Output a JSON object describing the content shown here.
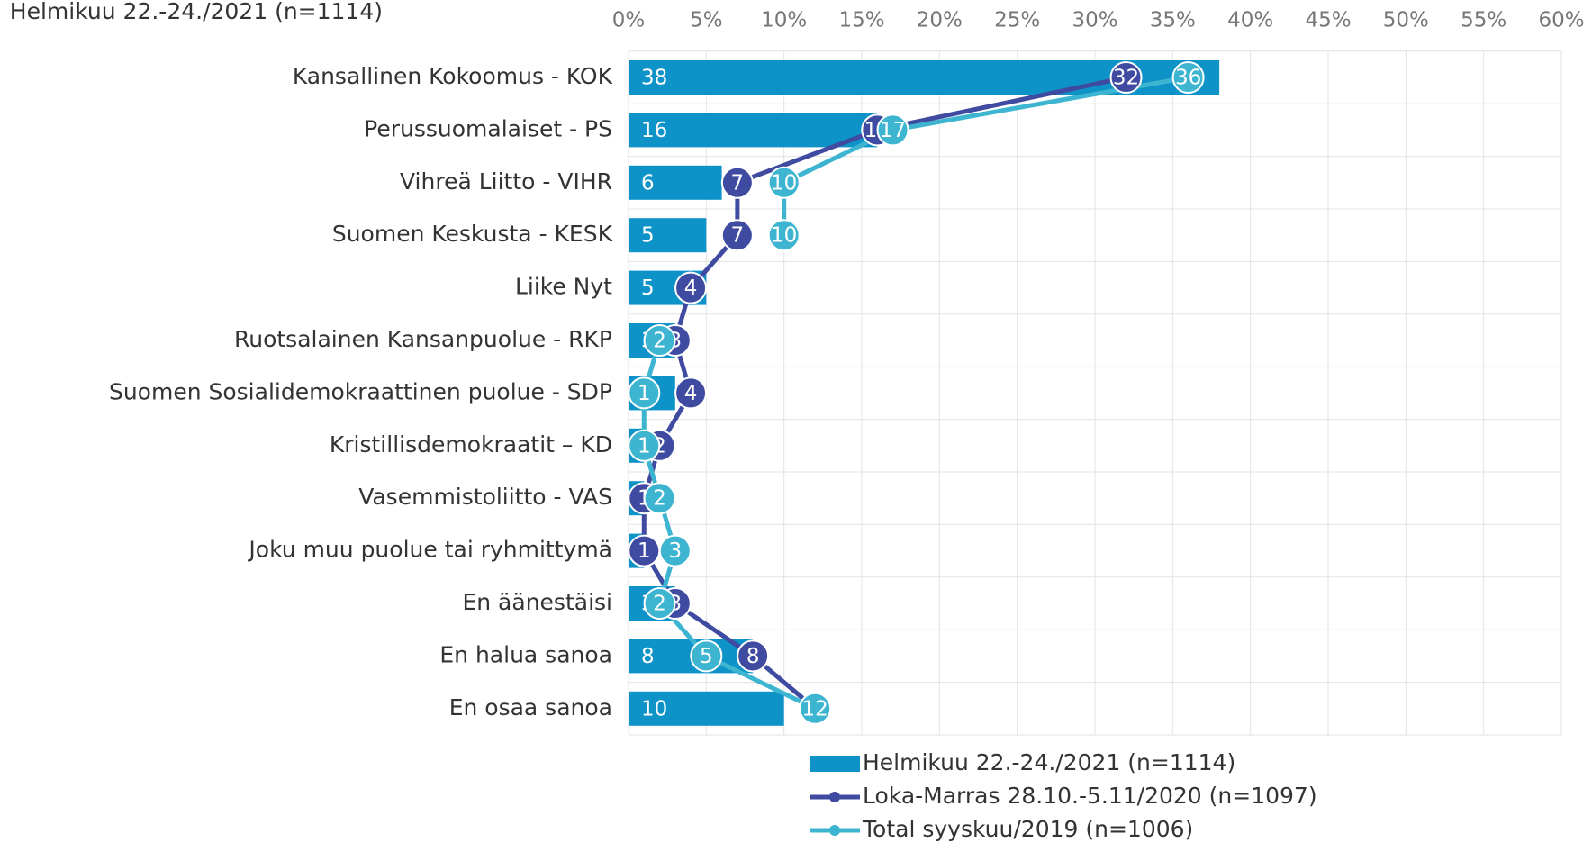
{
  "chart_data": {
    "type": "bar_line",
    "title": "Helmikuu 22.-24./2021 (n=1114)",
    "categories": [
      "Kansallinen Kokoomus - KOK",
      "Perussuomalaiset - PS",
      "Vihreä Liitto - VIHR",
      "Suomen Keskusta - KESK",
      "Liike Nyt",
      "Ruotsalainen Kansanpuolue - RKP",
      "Suomen Sosialidemokraattinen puolue - SDP",
      "Kristillisdemokraatit  – KD",
      "Vasemmistoliitto - VAS",
      "Joku muu puolue tai ryhmittymä",
      "En äänestäisi",
      "En halua sanoa",
      "En osaa sanoa"
    ],
    "series": [
      {
        "name": "Helmikuu 22.-24./2021 (n=1114)",
        "type": "bar",
        "color": "#0e93c9",
        "values": [
          38,
          16,
          6,
          5,
          5,
          3,
          3,
          1,
          1,
          1,
          3,
          8,
          10
        ]
      },
      {
        "name": "Loka-Marras 28.10.-5.11/2020 (n=1097)",
        "type": "line",
        "color": "#3f4aa1",
        "values": [
          32,
          16,
          7,
          7,
          4,
          3,
          4,
          2,
          1,
          1,
          3,
          8,
          12
        ]
      },
      {
        "name": "Total syyskuu/2019 (n=1006)",
        "type": "line",
        "color": "#3db5d1",
        "values": [
          36,
          17,
          10,
          10,
          null,
          2,
          1,
          1,
          2,
          3,
          2,
          5,
          12
        ]
      }
    ],
    "xlim": [
      0,
      60
    ],
    "xticks": [
      {
        "value": 0,
        "label": "0%"
      },
      {
        "value": 5,
        "label": "5%"
      },
      {
        "value": 10,
        "label": "10%"
      },
      {
        "value": 15,
        "label": "15%"
      },
      {
        "value": 20,
        "label": "20%"
      },
      {
        "value": 25,
        "label": "25%"
      },
      {
        "value": 30,
        "label": "30%"
      },
      {
        "value": 35,
        "label": "35%"
      },
      {
        "value": 40,
        "label": "40%"
      },
      {
        "value": 45,
        "label": "45%"
      },
      {
        "value": 50,
        "label": "50%"
      },
      {
        "value": 55,
        "label": "55%"
      },
      {
        "value": 60,
        "label": "60%"
      }
    ],
    "grid": true,
    "legend": "bottom"
  }
}
